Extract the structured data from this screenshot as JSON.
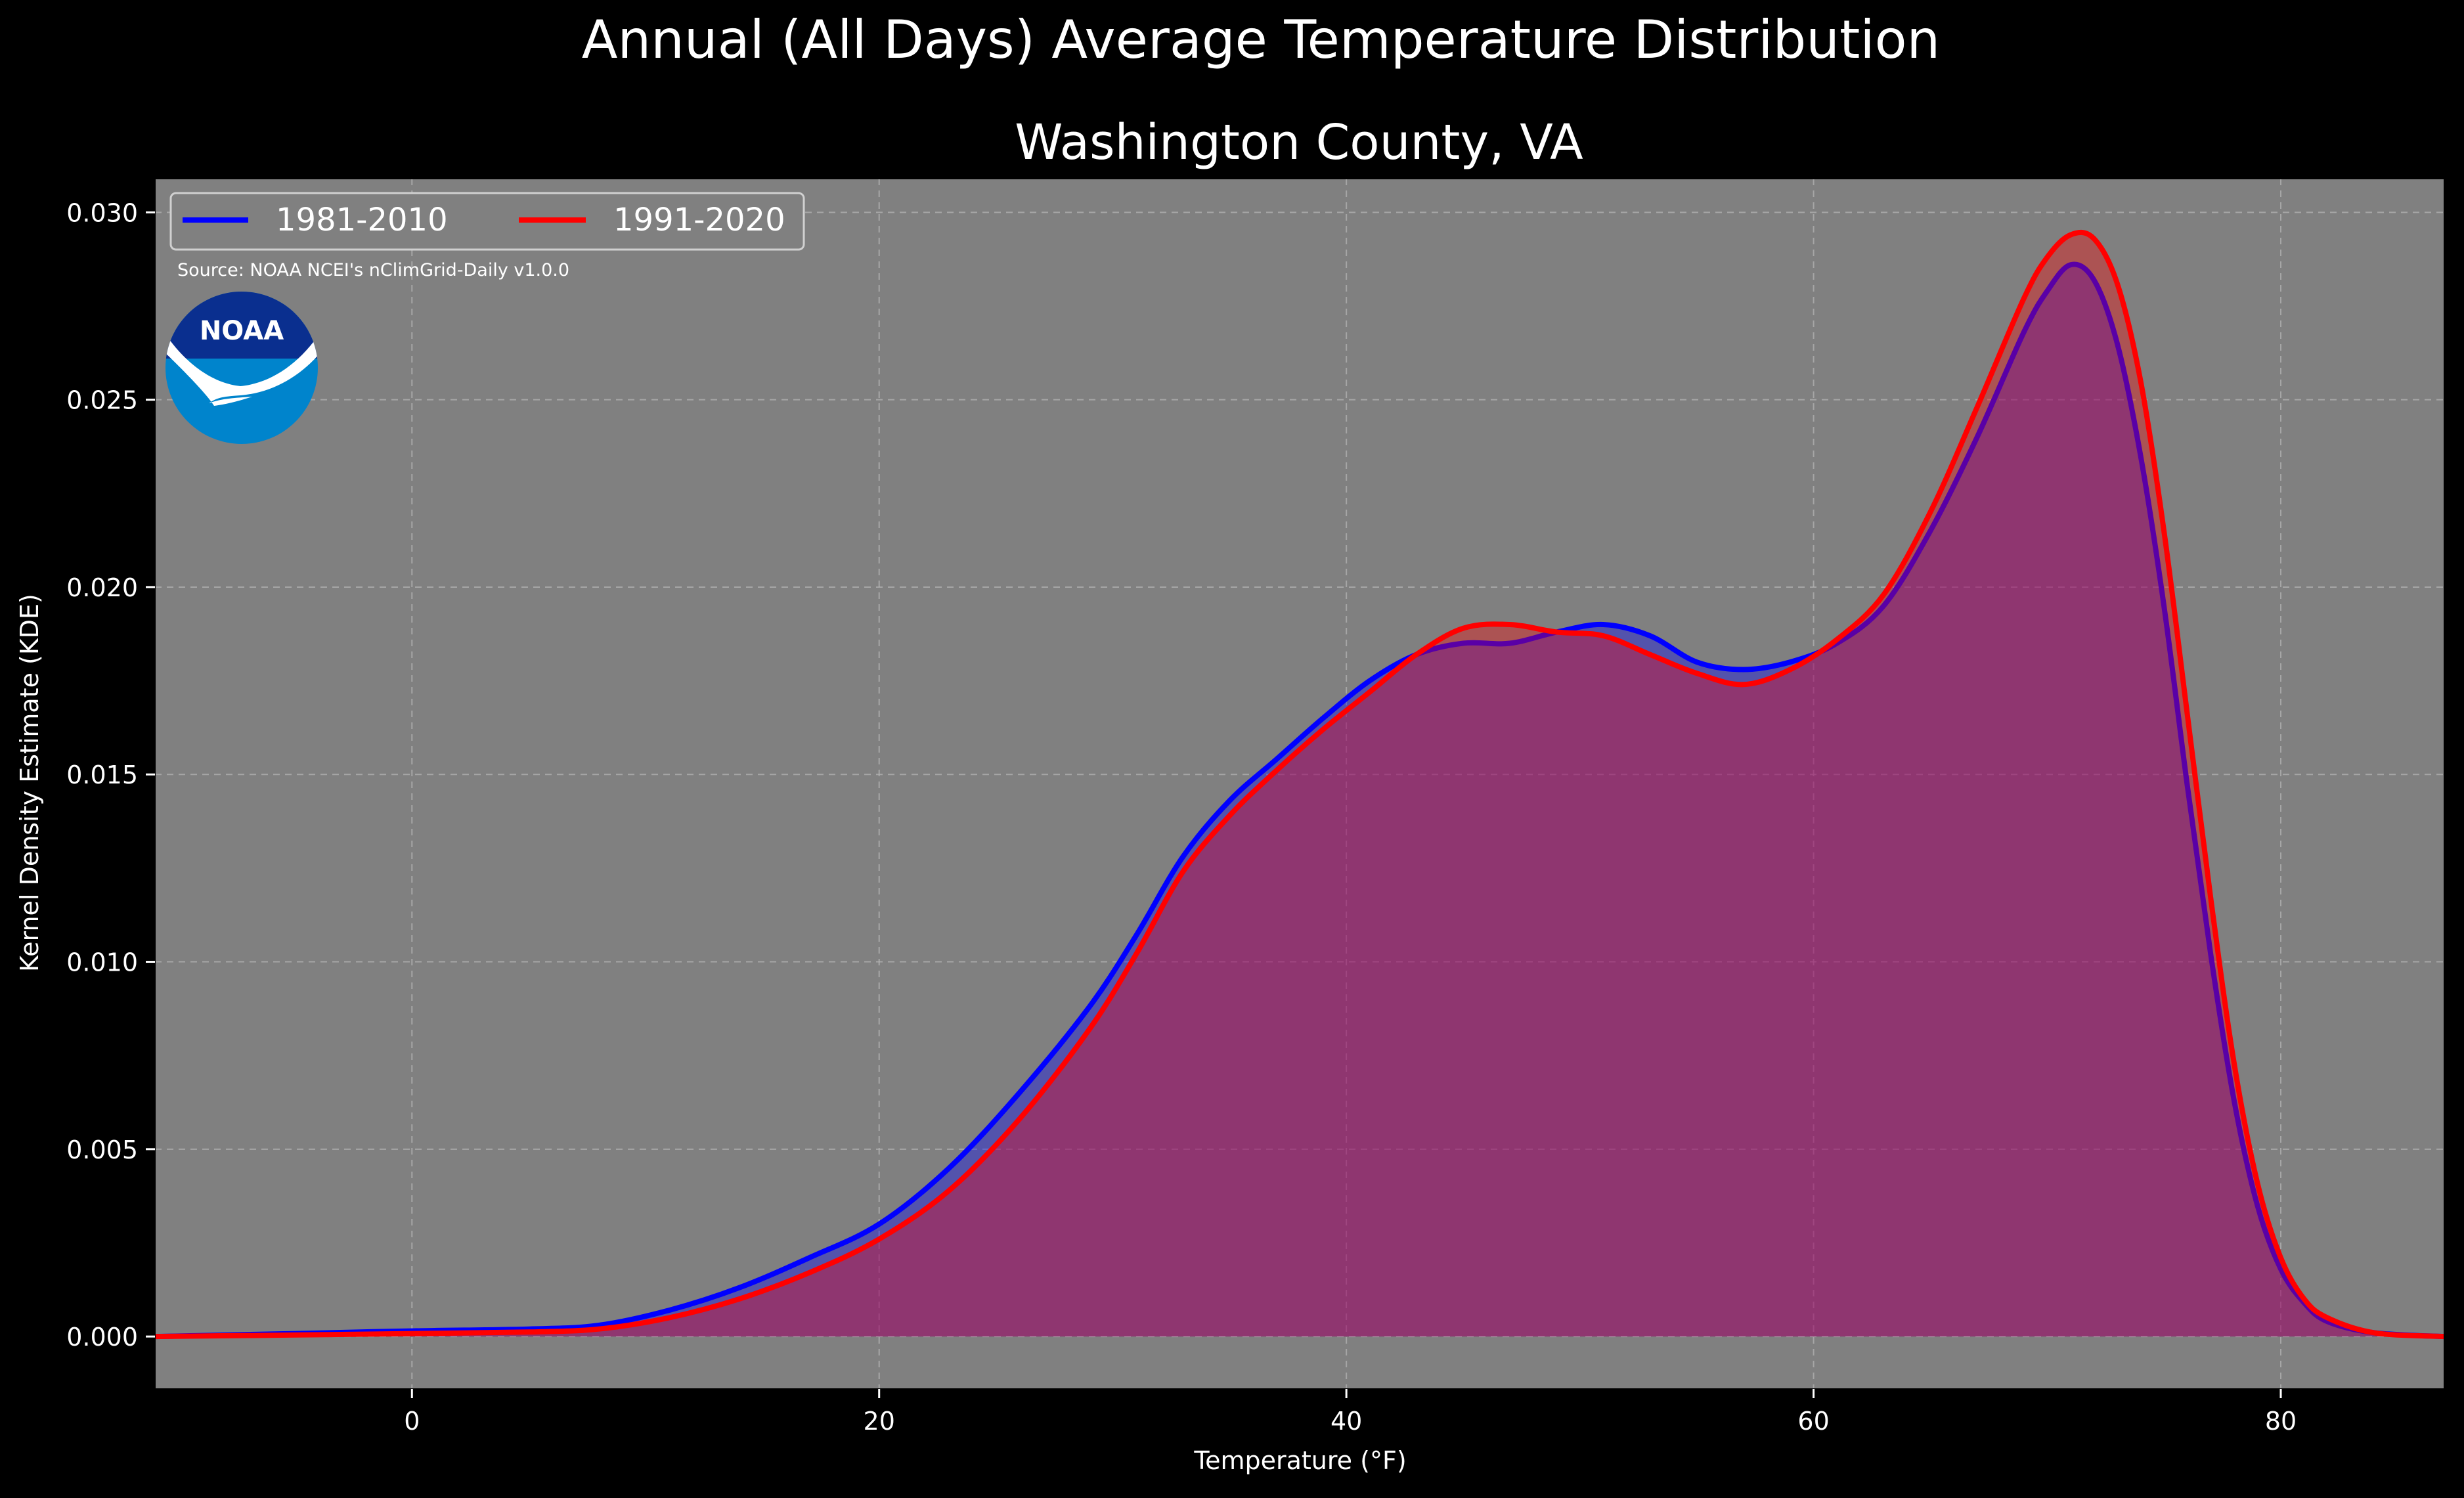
{
  "chart_data": {
    "type": "area",
    "title": "Annual (All Days) Average Temperature Distribution",
    "subtitle": "Washington County, VA",
    "xlabel": "Temperature (°F)",
    "ylabel": "Kernel Density Estimate (KDE)",
    "source": "Source: NOAA NCEI's nClimGrid-Daily v1.0.0",
    "logo_text": "NOAA",
    "xlim": [
      -11,
      87
    ],
    "ylim": [
      -0.0014,
      0.0309
    ],
    "x_ticks": [
      0,
      20,
      40,
      60,
      80
    ],
    "x_tick_labels": [
      "0",
      "20",
      "40",
      "60",
      "80"
    ],
    "y_ticks": [
      0.0,
      0.005,
      0.01,
      0.015,
      0.02,
      0.025,
      0.03
    ],
    "y_tick_labels": [
      "0.000",
      "0.005",
      "0.010",
      "0.015",
      "0.020",
      "0.025",
      "0.030"
    ],
    "grid": true,
    "legend_position": "top-left",
    "colors": {
      "background": "#000000",
      "plot_background": "#808080",
      "text": "#ffffff",
      "grid": "#b3b3b3"
    },
    "series": [
      {
        "name": "1981-2010",
        "color": "#0000ff",
        "fill": "rgba(0,0,255,0.35)",
        "x": [
          -11,
          -5,
          0,
          5,
          8,
          11,
          14,
          17,
          20,
          23,
          26,
          29,
          31,
          33,
          35,
          37,
          39,
          41,
          43,
          45,
          47,
          49,
          51,
          53,
          55,
          57,
          59,
          61,
          63,
          65,
          67,
          69,
          70,
          71,
          72,
          73,
          74,
          75,
          76,
          77,
          78,
          79,
          80,
          81,
          82,
          84,
          87
        ],
        "y": [
          0.0,
          8e-05,
          0.00015,
          0.0002,
          0.0003,
          0.0007,
          0.0013,
          0.0021,
          0.003,
          0.0045,
          0.0065,
          0.0088,
          0.0107,
          0.0128,
          0.0143,
          0.0154,
          0.0165,
          0.0175,
          0.0182,
          0.0185,
          0.0185,
          0.0188,
          0.019,
          0.0187,
          0.018,
          0.0178,
          0.018,
          0.0185,
          0.0195,
          0.0215,
          0.024,
          0.0268,
          0.0279,
          0.0286,
          0.0282,
          0.0265,
          0.0235,
          0.0195,
          0.0147,
          0.0102,
          0.0063,
          0.0035,
          0.0018,
          0.0009,
          0.0004,
          0.0001,
          0.0
        ]
      },
      {
        "name": "1991-2020",
        "color": "#ff0000",
        "fill": "rgba(255,0,0,0.35)",
        "x": [
          -11,
          -5,
          0,
          5,
          8,
          11,
          14,
          17,
          20,
          23,
          26,
          29,
          31,
          33,
          35,
          37,
          39,
          41,
          43,
          45,
          47,
          49,
          51,
          53,
          55,
          57,
          59,
          61,
          63,
          65,
          67,
          69,
          70,
          71,
          72,
          73,
          74,
          75,
          76,
          77,
          78,
          79,
          80,
          81,
          82,
          84,
          87
        ],
        "y": [
          0.0,
          4e-05,
          8e-05,
          0.00012,
          0.0002,
          0.0005,
          0.001,
          0.0017,
          0.0026,
          0.0039,
          0.0058,
          0.0082,
          0.0102,
          0.0124,
          0.0139,
          0.0151,
          0.0162,
          0.0172,
          0.0182,
          0.0189,
          0.019,
          0.0188,
          0.0187,
          0.0182,
          0.0177,
          0.0174,
          0.0178,
          0.0186,
          0.0198,
          0.022,
          0.0248,
          0.0277,
          0.0288,
          0.0294,
          0.0293,
          0.0281,
          0.0255,
          0.0215,
          0.0166,
          0.0117,
          0.0073,
          0.0041,
          0.0021,
          0.001,
          0.0005,
          0.0001,
          0.0
        ]
      }
    ]
  }
}
